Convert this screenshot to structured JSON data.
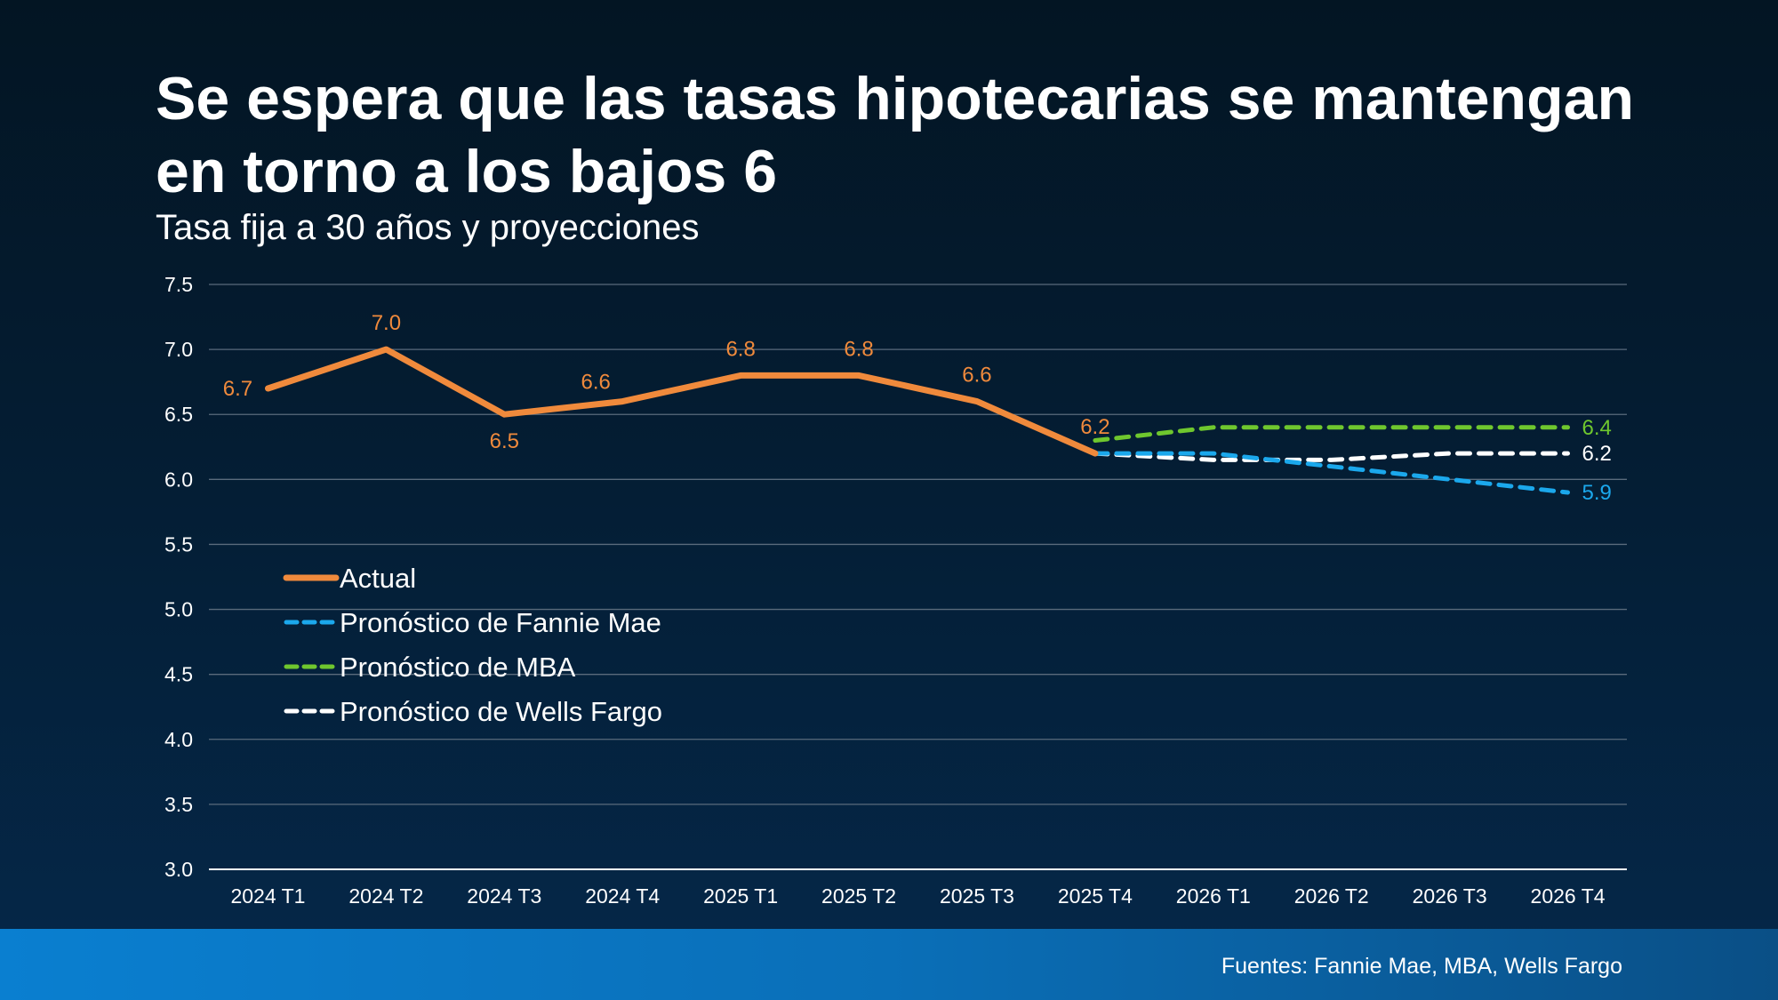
{
  "title": "Se espera que las tasas hipotecarias se mantengan en torno a los bajos 6",
  "subtitle": "Tasa fija a 30 años y proyecciones",
  "source": "Fuentes: Fannie Mae, MBA, Wells Fargo",
  "colors": {
    "actual": "#f08a3c",
    "fannie": "#1ba8ec",
    "mba": "#6fc72e",
    "wells": "#ffffff",
    "grid": "#5a6b7c"
  },
  "chart_data": {
    "type": "line",
    "title": "Se espera que las tasas hipotecarias se mantengan en torno a los bajos 6",
    "subtitle": "Tasa fija a 30 años y proyecciones",
    "xlabel": "",
    "ylabel": "",
    "ylim": [
      3.0,
      7.5
    ],
    "yticks": [
      "3.0",
      "3.5",
      "4.0",
      "4.5",
      "5.0",
      "5.5",
      "6.0",
      "6.5",
      "7.0",
      "7.5"
    ],
    "grid": true,
    "legend_position": "lower-left",
    "categories": [
      "2024 T1",
      "2024 T2",
      "2024 T3",
      "2024 T4",
      "2025 T1",
      "2025 T2",
      "2025 T3",
      "2025 T4",
      "2026 T1",
      "2026 T2",
      "2026 T3",
      "2026 T4"
    ],
    "series": [
      {
        "name": "Actual",
        "key": "actual",
        "style": "solid",
        "values": [
          6.7,
          7.0,
          6.5,
          6.6,
          6.8,
          6.8,
          6.6,
          6.2,
          null,
          null,
          null,
          null
        ],
        "labels": [
          "6.7",
          "7.0",
          "6.5",
          "6.6",
          "6.8",
          "6.8",
          "6.6",
          "6.2",
          null,
          null,
          null,
          null
        ]
      },
      {
        "name": "Pronóstico de Fannie Mae",
        "key": "fannie",
        "style": "dashed",
        "values": [
          null,
          null,
          null,
          null,
          null,
          null,
          null,
          6.2,
          6.2,
          6.1,
          6.0,
          5.9
        ],
        "labels": [
          null,
          null,
          null,
          null,
          null,
          null,
          null,
          null,
          null,
          null,
          null,
          "5.9"
        ]
      },
      {
        "name": "Pronóstico de MBA",
        "key": "mba",
        "style": "dashed",
        "values": [
          null,
          null,
          null,
          null,
          null,
          null,
          null,
          6.3,
          6.4,
          6.4,
          6.4,
          6.4
        ],
        "labels": [
          null,
          null,
          null,
          null,
          null,
          null,
          null,
          null,
          null,
          null,
          null,
          "6.4"
        ]
      },
      {
        "name": "Pronóstico de Wells Fargo",
        "key": "wells",
        "style": "dashed",
        "values": [
          null,
          null,
          null,
          null,
          null,
          null,
          null,
          6.2,
          6.15,
          6.15,
          6.2,
          6.2
        ],
        "labels": [
          null,
          null,
          null,
          null,
          null,
          null,
          null,
          null,
          null,
          null,
          null,
          "6.2"
        ]
      }
    ]
  }
}
